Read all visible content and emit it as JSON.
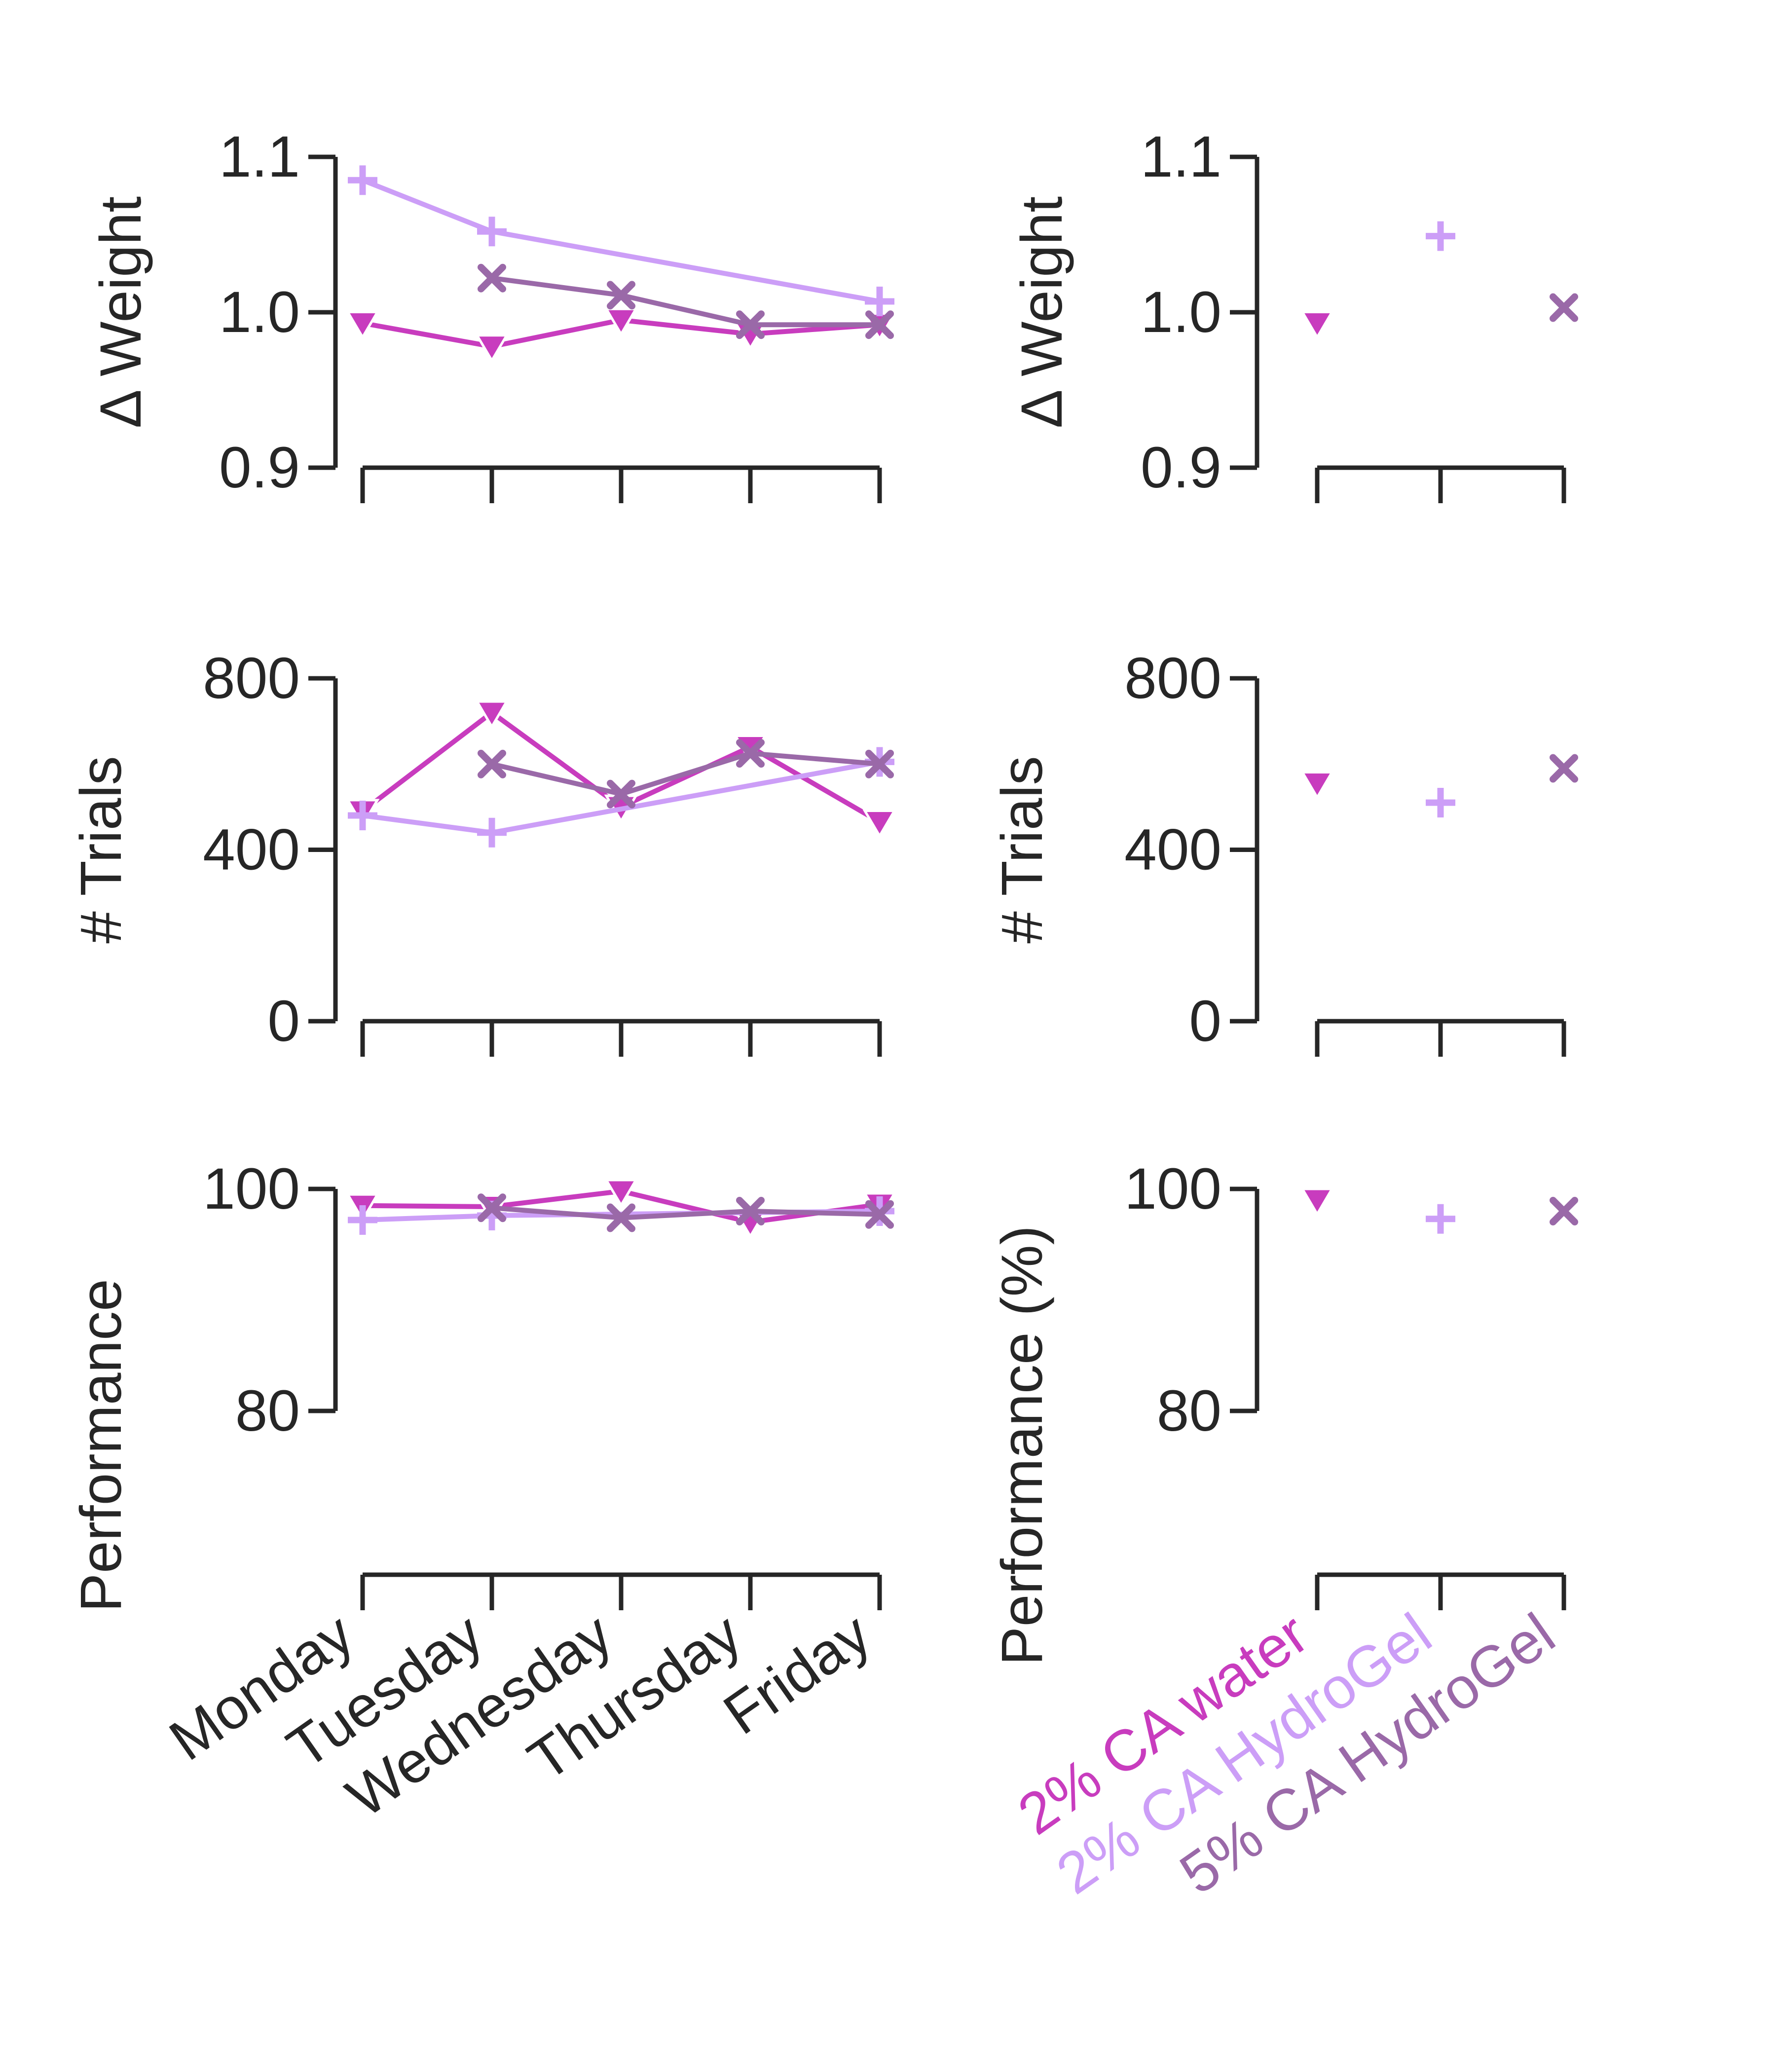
{
  "colors": {
    "axis": "#262626",
    "series": [
      "#c83cbe",
      "#cc9ef7",
      "#9a69a8"
    ]
  },
  "chart_data": [
    {
      "type": "line",
      "panel": "weight-by-day",
      "ylabel": "Δ Weight",
      "ylim": [
        0.9,
        1.1
      ],
      "yticks": [
        "0.9",
        "1.0",
        "1.1"
      ],
      "categories": [
        "Monday",
        "Tuesday",
        "Wednesday",
        "Thursday",
        "Friday"
      ],
      "show_category_labels": false,
      "series": [
        {
          "name": "2% CA water",
          "marker": "triangle",
          "values": [
            0.993,
            0.978,
            0.995,
            0.986,
            0.992
          ]
        },
        {
          "name": "2% CA HydroGel",
          "marker": "plus",
          "values": [
            1.085,
            1.052,
            null,
            null,
            1.007
          ]
        },
        {
          "name": "5% CA HydroGel",
          "marker": "x",
          "values": [
            null,
            1.022,
            1.011,
            0.992,
            0.992
          ]
        }
      ]
    },
    {
      "type": "scatter",
      "panel": "weight-by-group",
      "ylabel": "Δ Weight",
      "ylim": [
        0.9,
        1.1
      ],
      "yticks": [
        "0.9",
        "1.0",
        "1.1"
      ],
      "categories": [
        "2% CA water",
        "2% CA HydroGel",
        "5% CA HydroGel"
      ],
      "show_category_labels": false,
      "values": [
        0.993,
        1.049,
        1.003
      ]
    },
    {
      "type": "line",
      "panel": "trials-by-day",
      "ylabel": "# Trials",
      "ylim": [
        0,
        800
      ],
      "yticks": [
        "0",
        "400",
        "800"
      ],
      "categories": [
        "Monday",
        "Tuesday",
        "Wednesday",
        "Thursday",
        "Friday"
      ],
      "show_category_labels": false,
      "series": [
        {
          "name": "2% CA water",
          "marker": "triangle",
          "values": [
            490,
            720,
            500,
            640,
            465
          ]
        },
        {
          "name": "2% CA HydroGel",
          "marker": "plus",
          "values": [
            480,
            440,
            null,
            null,
            605
          ]
        },
        {
          "name": "5% CA HydroGel",
          "marker": "x",
          "values": [
            null,
            600,
            530,
            625,
            600
          ]
        }
      ]
    },
    {
      "type": "scatter",
      "panel": "trials-by-group",
      "ylabel": "# Trials",
      "ylim": [
        0,
        800
      ],
      "yticks": [
        "0",
        "400",
        "800"
      ],
      "categories": [
        "2% CA water",
        "2% CA HydroGel",
        "5% CA HydroGel"
      ],
      "show_category_labels": false,
      "values": [
        555,
        510,
        590
      ]
    },
    {
      "type": "line",
      "panel": "performance-by-day",
      "ylabel": "Performance",
      "ylim": [
        65,
        100
      ],
      "yticks": [
        "80",
        "100"
      ],
      "categories": [
        "Monday",
        "Tuesday",
        "Wednesday",
        "Thursday",
        "Friday"
      ],
      "show_category_labels": true,
      "series": [
        {
          "name": "2% CA water",
          "marker": "triangle",
          "values": [
            98.5,
            98.4,
            99.8,
            97.0,
            98.6
          ]
        },
        {
          "name": "2% CA HydroGel",
          "marker": "plus",
          "values": [
            97.2,
            97.6,
            null,
            null,
            98.0
          ]
        },
        {
          "name": "5% CA HydroGel",
          "marker": "x",
          "values": [
            null,
            98.3,
            97.4,
            98.0,
            97.7
          ]
        }
      ]
    },
    {
      "type": "scatter",
      "panel": "performance-by-group",
      "ylabel": "Performance (%)",
      "ylim": [
        65,
        100
      ],
      "yticks": [
        "80",
        "100"
      ],
      "categories": [
        "2% CA water",
        "2% CA HydroGel",
        "5% CA HydroGel"
      ],
      "show_category_labels": true,
      "values": [
        99.0,
        97.3,
        98.0
      ]
    }
  ]
}
